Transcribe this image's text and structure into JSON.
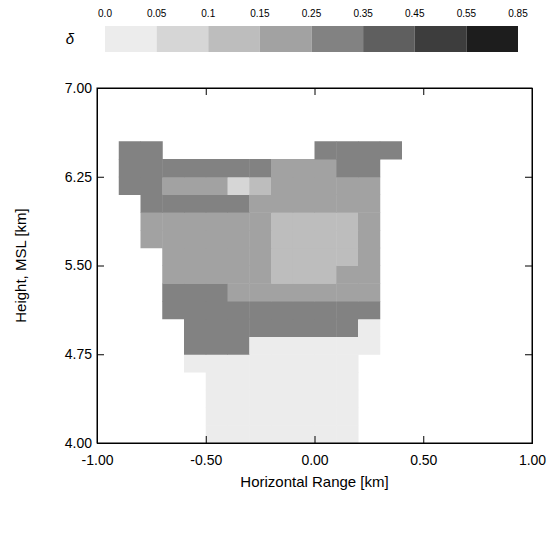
{
  "chart_data": {
    "type": "heatmap",
    "x_label": "Horizontal Range [km]",
    "y_label": "Height, MSL [km]",
    "xlim": [
      -1.0,
      1.0
    ],
    "ylim": [
      4.0,
      7.0
    ],
    "xticks": [
      {
        "value": -1.0,
        "label": "-1.00"
      },
      {
        "value": -0.5,
        "label": "-0.50"
      },
      {
        "value": 0.0,
        "label": "0.00"
      },
      {
        "value": 0.5,
        "label": "0.50"
      },
      {
        "value": 1.0,
        "label": "1.00"
      }
    ],
    "yticks": [
      {
        "value": 4.0,
        "label": "4.00"
      },
      {
        "value": 4.75,
        "label": "4.75"
      },
      {
        "value": 5.5,
        "label": "5.50"
      },
      {
        "value": 6.25,
        "label": "6.25"
      },
      {
        "value": 7.0,
        "label": "7.00"
      }
    ],
    "x": [
      -1.0,
      -0.9,
      -0.8,
      -0.7,
      -0.6,
      -0.5,
      -0.4,
      -0.3,
      -0.2,
      -0.1,
      0.0,
      0.1,
      0.2,
      0.3,
      0.4,
      0.5,
      0.6,
      0.7,
      0.8,
      0.9,
      1.0
    ],
    "y": [
      4.0,
      4.15,
      4.3,
      4.45,
      4.6,
      4.75,
      4.9,
      5.05,
      5.2,
      5.35,
      5.5,
      5.65,
      5.8,
      5.95,
      6.1,
      6.25,
      6.4,
      6.55,
      6.7,
      6.85,
      7.0
    ],
    "values": [
      [
        null,
        null,
        null,
        null,
        null,
        0.02,
        0.02,
        0.02,
        0.02,
        0.02,
        0.02,
        0.02,
        null,
        null,
        null,
        null,
        null,
        null,
        null,
        null
      ],
      [
        null,
        null,
        null,
        null,
        null,
        0.02,
        0.02,
        0.02,
        0.02,
        0.02,
        0.02,
        0.02,
        null,
        null,
        null,
        null,
        null,
        null,
        null,
        null
      ],
      [
        null,
        null,
        null,
        null,
        null,
        0.02,
        0.02,
        0.02,
        0.02,
        0.02,
        0.02,
        0.02,
        null,
        null,
        null,
        null,
        null,
        null,
        null,
        null
      ],
      [
        null,
        null,
        null,
        null,
        null,
        0.02,
        0.02,
        0.02,
        0.02,
        0.02,
        0.02,
        0.02,
        null,
        null,
        null,
        null,
        null,
        null,
        null,
        null
      ],
      [
        null,
        null,
        null,
        null,
        0.02,
        0.02,
        0.02,
        0.02,
        0.02,
        0.02,
        0.02,
        0.02,
        null,
        null,
        null,
        null,
        null,
        null,
        null,
        null
      ],
      [
        null,
        null,
        null,
        null,
        0.3,
        0.32,
        0.28,
        0.02,
        0.02,
        0.02,
        0.02,
        0.02,
        0.02,
        null,
        null,
        null,
        null,
        null,
        null,
        null
      ],
      [
        null,
        null,
        null,
        null,
        0.3,
        0.3,
        0.3,
        0.28,
        0.28,
        0.3,
        0.3,
        0.32,
        0.02,
        null,
        null,
        null,
        null,
        null,
        null,
        null
      ],
      [
        null,
        null,
        null,
        0.3,
        0.3,
        0.28,
        0.3,
        0.28,
        0.25,
        0.25,
        0.27,
        0.3,
        0.3,
        null,
        null,
        null,
        null,
        null,
        null,
        null
      ],
      [
        null,
        null,
        null,
        0.26,
        0.25,
        0.26,
        0.24,
        0.22,
        0.2,
        0.18,
        0.2,
        0.22,
        0.24,
        null,
        null,
        null,
        null,
        null,
        null,
        null
      ],
      [
        null,
        null,
        null,
        0.24,
        0.22,
        0.22,
        0.2,
        0.18,
        0.14,
        0.12,
        0.12,
        0.16,
        0.2,
        null,
        null,
        null,
        null,
        null,
        null,
        null
      ],
      [
        null,
        null,
        null,
        0.22,
        0.2,
        0.2,
        0.18,
        0.15,
        0.12,
        0.1,
        0.1,
        0.14,
        0.18,
        null,
        null,
        null,
        null,
        null,
        null,
        null
      ],
      [
        null,
        null,
        0.22,
        0.2,
        0.2,
        0.18,
        0.18,
        0.16,
        0.13,
        0.1,
        0.1,
        0.12,
        0.16,
        null,
        null,
        null,
        null,
        null,
        null,
        null
      ],
      [
        null,
        null,
        0.24,
        0.22,
        0.2,
        0.2,
        0.18,
        0.16,
        0.14,
        0.12,
        0.12,
        0.14,
        0.18,
        null,
        null,
        null,
        null,
        null,
        null,
        null
      ],
      [
        null,
        null,
        0.3,
        0.28,
        0.28,
        0.26,
        0.26,
        0.24,
        0.2,
        0.16,
        0.16,
        0.2,
        0.22,
        null,
        null,
        null,
        null,
        null,
        null,
        null
      ],
      [
        null,
        0.3,
        0.26,
        0.24,
        0.22,
        0.2,
        0.08,
        0.1,
        0.2,
        0.2,
        0.18,
        0.2,
        0.22,
        null,
        null,
        null,
        null,
        null,
        null,
        null
      ],
      [
        null,
        0.3,
        0.3,
        0.28,
        0.3,
        0.28,
        0.28,
        0.26,
        0.24,
        0.22,
        0.24,
        0.26,
        0.26,
        null,
        null,
        null,
        null,
        null,
        null,
        null
      ],
      [
        null,
        0.28,
        0.28,
        null,
        null,
        null,
        null,
        null,
        null,
        null,
        0.3,
        0.32,
        0.3,
        0.28,
        null,
        null,
        null,
        null,
        null,
        null
      ],
      [
        null,
        null,
        null,
        null,
        null,
        null,
        null,
        null,
        null,
        null,
        null,
        null,
        null,
        null,
        null,
        null,
        null,
        null,
        null,
        null
      ],
      [
        null,
        null,
        null,
        null,
        null,
        null,
        null,
        null,
        null,
        null,
        null,
        null,
        null,
        null,
        null,
        null,
        null,
        null,
        null,
        null
      ],
      [
        null,
        null,
        null,
        null,
        null,
        null,
        null,
        null,
        null,
        null,
        null,
        null,
        null,
        null,
        null,
        null,
        null,
        null,
        null,
        null
      ]
    ],
    "colorbar": {
      "label": "δ",
      "range": [
        0.0,
        0.85
      ],
      "ticks": [
        {
          "value": 0.0,
          "label": "0.0"
        },
        0.05,
        0.1,
        0.15,
        0.25,
        0.35,
        0.45,
        0.55,
        0.85
      ],
      "colors": [
        "#ececec",
        "#d6d6d6",
        "#bdbdbd",
        "#a2a2a2",
        "#828282",
        "#5f5f5f",
        "#3d3d3d",
        "#1d1d1d"
      ]
    }
  }
}
